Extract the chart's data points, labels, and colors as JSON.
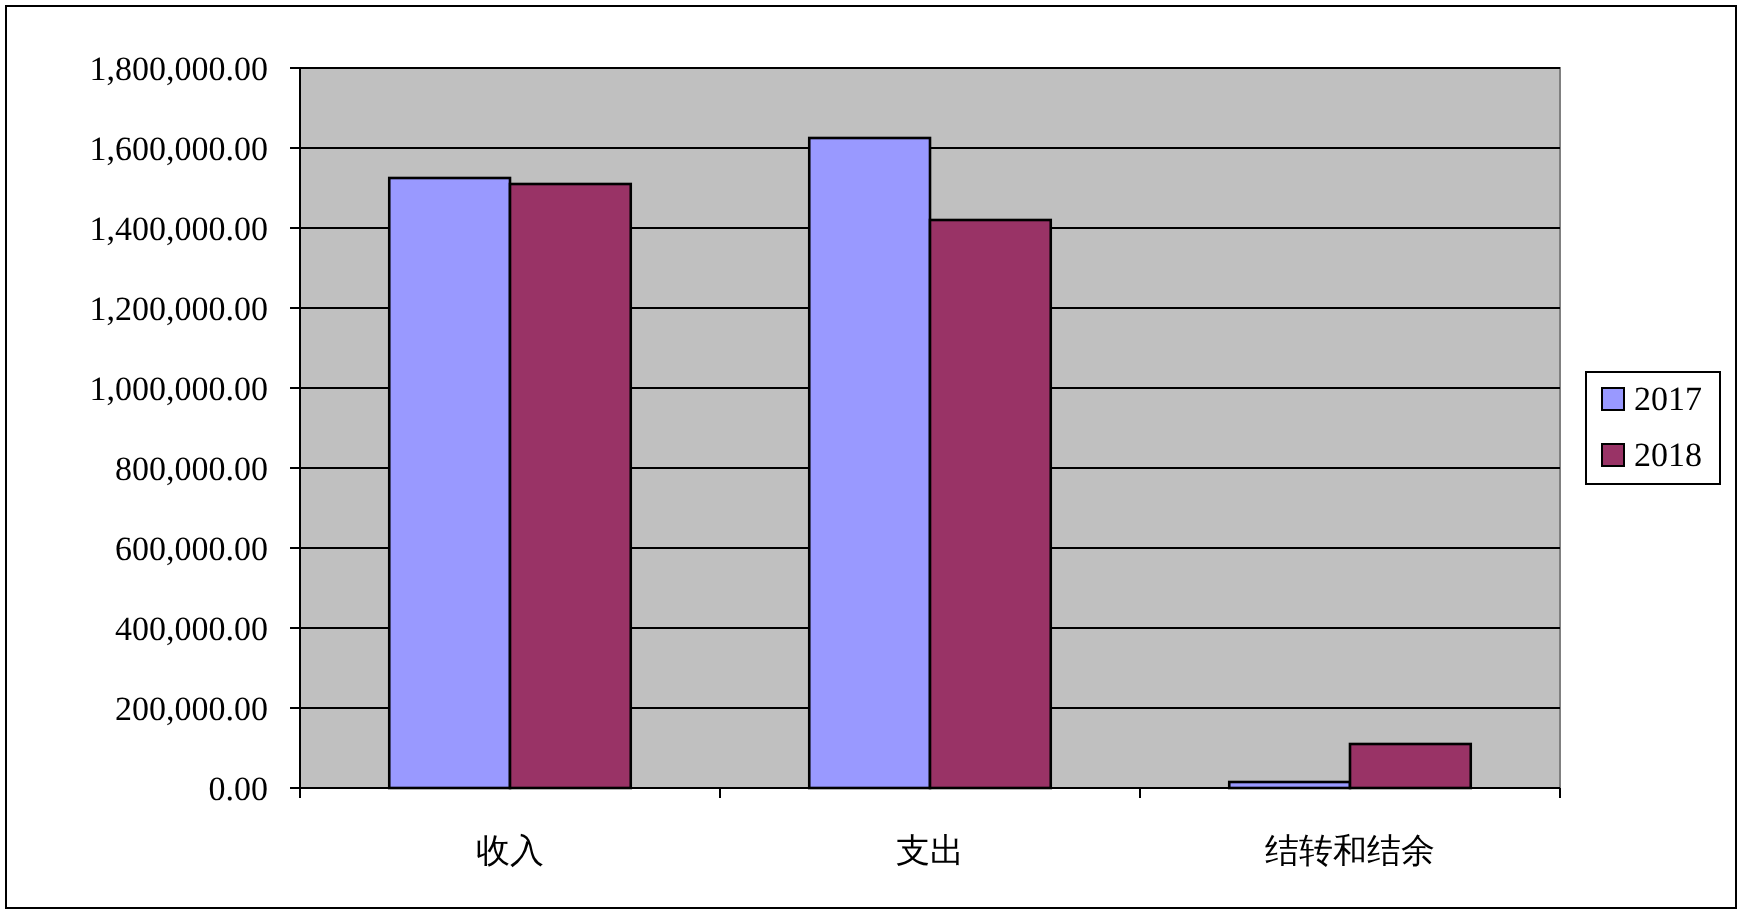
{
  "chart_data": {
    "type": "bar",
    "categories": [
      "收入",
      "支出",
      "结转和结余"
    ],
    "series": [
      {
        "name": "2017",
        "color": "#9999ff",
        "values": [
          1525000,
          1625000,
          15000
        ]
      },
      {
        "name": "2018",
        "color": "#993366",
        "values": [
          1510000,
          1420000,
          110000
        ]
      }
    ],
    "ylim": [
      0,
      1800000
    ],
    "yticks": [
      {
        "value": 0,
        "label": "0.00"
      },
      {
        "value": 200000,
        "label": "200,000.00"
      },
      {
        "value": 400000,
        "label": "400,000.00"
      },
      {
        "value": 600000,
        "label": "600,000.00"
      },
      {
        "value": 800000,
        "label": "800,000.00"
      },
      {
        "value": 1000000,
        "label": "1,000,000.00"
      },
      {
        "value": 1200000,
        "label": "1,200,000.00"
      },
      {
        "value": 1400000,
        "label": "1,400,000.00"
      },
      {
        "value": 1600000,
        "label": "1,600,000.00"
      },
      {
        "value": 1800000,
        "label": "1,800,000.00"
      }
    ],
    "grid": "y",
    "legend": "right"
  }
}
